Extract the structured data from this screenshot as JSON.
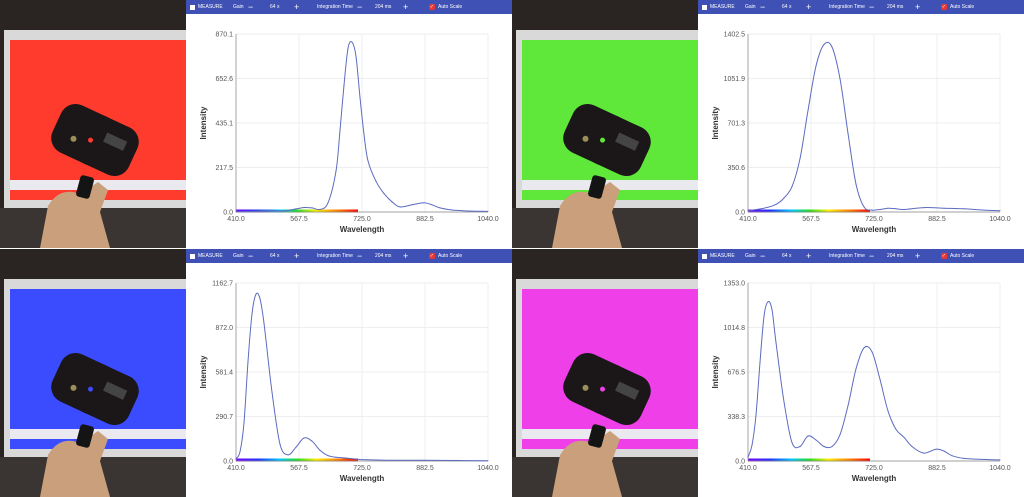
{
  "toolbar": {
    "measure_label": "MEASURE",
    "gain_label": "Gain",
    "gain_value": "64 x",
    "integration_label": "Integration Time",
    "integration_value": "204 ms",
    "autoscale_label": "Auto Scale",
    "autoscale_checked": true,
    "minus_symbol": "−",
    "plus_symbol": "+"
  },
  "chart_data": [
    {
      "type": "line",
      "screen_color": "#ff3b2e",
      "xlabel": "Wavelength",
      "ylabel": "Intensity",
      "xlim": [
        410.0,
        1040.0
      ],
      "ylim": [
        0.0,
        870.1
      ],
      "xticks": [
        "410.0",
        "567.5",
        "725.0",
        "882.5",
        "1040.0"
      ],
      "yticks": [
        "0.0",
        "217.5",
        "435.1",
        "652.6",
        "870.1"
      ],
      "x": [
        410,
        440,
        470,
        500,
        530,
        560,
        580,
        600,
        620,
        640,
        660,
        670,
        680,
        690,
        700,
        710,
        720,
        730,
        740,
        760,
        780,
        800,
        820,
        850,
        880,
        900,
        920,
        950,
        990,
        1040
      ],
      "y": [
        2,
        3,
        5,
        7,
        5,
        15,
        22,
        20,
        12,
        45,
        200,
        400,
        620,
        800,
        830,
        760,
        560,
        380,
        250,
        150,
        90,
        50,
        25,
        35,
        45,
        35,
        20,
        10,
        5,
        3
      ]
    },
    {
      "type": "line",
      "screen_color": "#5fe83a",
      "xlabel": "Wavelength",
      "ylabel": "Intensity",
      "xlim": [
        410.0,
        1040.0
      ],
      "ylim": [
        0.0,
        1402.5
      ],
      "xticks": [
        "410.0",
        "567.5",
        "725.0",
        "882.5",
        "1040.0"
      ],
      "yticks": [
        "0.0",
        "350.6",
        "701.3",
        "1051.9",
        "1402.5"
      ],
      "x": [
        410,
        450,
        480,
        500,
        520,
        540,
        560,
        580,
        600,
        620,
        640,
        660,
        680,
        700,
        720,
        740,
        760,
        780,
        800,
        850,
        900,
        950,
        1000,
        1040
      ],
      "y": [
        10,
        30,
        60,
        110,
        200,
        420,
        800,
        1150,
        1320,
        1300,
        1050,
        620,
        220,
        40,
        15,
        20,
        30,
        25,
        20,
        35,
        30,
        25,
        15,
        10
      ]
    },
    {
      "type": "line",
      "screen_color": "#3b4cff",
      "xlabel": "Wavelength",
      "ylabel": "Intensity",
      "xlim": [
        410.0,
        1040.0
      ],
      "ylim": [
        0.0,
        1162.7
      ],
      "xticks": [
        "410.0",
        "567.5",
        "725.0",
        "882.5",
        "1040.0"
      ],
      "yticks": [
        "0.0",
        "290.7",
        "581.4",
        "872.0",
        "1162.7"
      ],
      "x": [
        410,
        420,
        430,
        440,
        450,
        460,
        470,
        480,
        500,
        520,
        540,
        560,
        580,
        600,
        620,
        640,
        660,
        680,
        700,
        720,
        740,
        800,
        880,
        960,
        1040
      ],
      "y": [
        15,
        60,
        250,
        650,
        960,
        1090,
        1060,
        900,
        450,
        110,
        40,
        90,
        150,
        130,
        70,
        35,
        25,
        20,
        15,
        10,
        8,
        5,
        5,
        3,
        2
      ]
    },
    {
      "type": "line",
      "screen_color": "#ee3fe8",
      "xlabel": "Wavelength",
      "ylabel": "Intensity",
      "xlim": [
        410.0,
        1040.0
      ],
      "ylim": [
        0.0,
        1353.0
      ],
      "xticks": [
        "410.0",
        "567.5",
        "725.0",
        "882.5",
        "1040.0"
      ],
      "yticks": [
        "0.0",
        "338.3",
        "676.5",
        "1014.8",
        "1353.0"
      ],
      "x": [
        410,
        420,
        430,
        440,
        450,
        460,
        470,
        480,
        500,
        520,
        540,
        560,
        580,
        600,
        620,
        640,
        660,
        680,
        700,
        720,
        740,
        760,
        780,
        800,
        820,
        850,
        880,
        900,
        920,
        950,
        1000,
        1040
      ],
      "y": [
        30,
        120,
        350,
        750,
        1100,
        1210,
        1150,
        900,
        450,
        140,
        110,
        190,
        160,
        110,
        110,
        200,
        420,
        700,
        860,
        830,
        620,
        380,
        240,
        180,
        110,
        60,
        90,
        75,
        40,
        20,
        12,
        8
      ]
    }
  ]
}
